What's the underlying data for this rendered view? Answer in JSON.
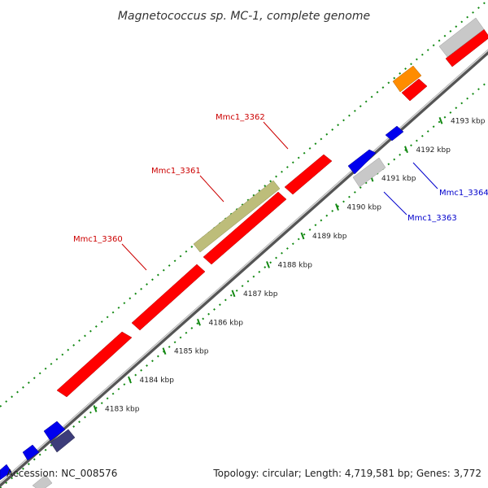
{
  "title": "Magnetococcus sp. MC-1, complete genome",
  "footer": {
    "accession": "Accession: NC_008576",
    "summary": "Topology: circular; Length: 4,719,581 bp; Genes: 3,772"
  },
  "ticks": [
    {
      "label": "4183 kbp",
      "value": 4183
    },
    {
      "label": "4184 kbp",
      "value": 4184
    },
    {
      "label": "4185 kbp",
      "value": 4185
    },
    {
      "label": "4186 kbp",
      "value": 4186
    },
    {
      "label": "4187 kbp",
      "value": 4187
    },
    {
      "label": "4188 kbp",
      "value": 4188
    },
    {
      "label": "4189 kbp",
      "value": 4189
    },
    {
      "label": "4190 kbp",
      "value": 4190
    },
    {
      "label": "4191 kbp",
      "value": 4191
    },
    {
      "label": "4192 kbp",
      "value": 4192
    },
    {
      "label": "4193 kbp",
      "value": 4193
    }
  ],
  "gene_labels": [
    {
      "label": "Mmc1_3360",
      "color": "#cc0000"
    },
    {
      "label": "Mmc1_3361",
      "color": "#cc0000"
    },
    {
      "label": "Mmc1_3362",
      "color": "#cc0000"
    },
    {
      "label": "Mmc1_3363",
      "color": "#0000cc"
    },
    {
      "label": "Mmc1_3364",
      "color": "#0000cc"
    }
  ],
  "colors": {
    "forward_gene": "#ff0000",
    "reverse_gene": "#0000ee",
    "gray_gene": "#c8c8c8",
    "olive_feature": "#bdbd7a",
    "orange_feature": "#ff8c00",
    "dark_feature": "#3d3d7a",
    "backbone": "#888888",
    "tick_green": "#118811"
  }
}
